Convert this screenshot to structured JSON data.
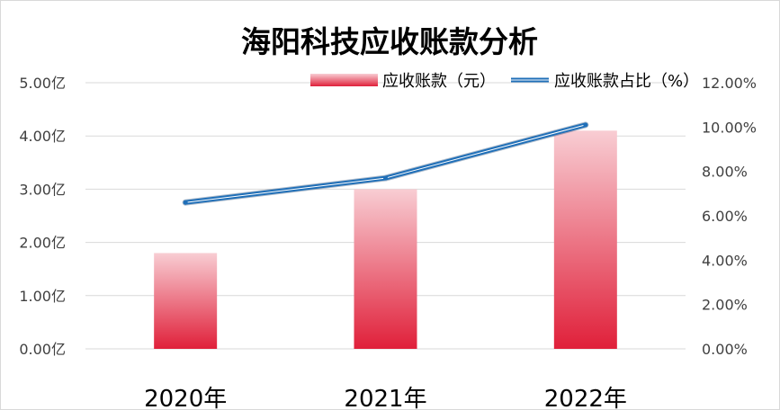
{
  "chart_data": {
    "type": "bar",
    "title": "海阳科技应收账款分析",
    "categories": [
      "2020年",
      "2021年",
      "2022年"
    ],
    "series": [
      {
        "name": "应收账款（元）",
        "kind": "bar",
        "axis": "left",
        "values": [
          1.8,
          3.0,
          4.1
        ],
        "unit": "亿",
        "color": "#e0203a",
        "gradient_top": "#f8cdd3"
      },
      {
        "name": "应收账款占比（%）",
        "kind": "line",
        "axis": "right",
        "values": [
          6.6,
          7.7,
          10.1
        ],
        "unit": "%",
        "color": "#1f6fb8"
      }
    ],
    "y_left": {
      "ylim": [
        0,
        5
      ],
      "ticks": [
        "0.00亿",
        "1.00亿",
        "2.00亿",
        "3.00亿",
        "4.00亿",
        "5.00亿"
      ]
    },
    "y_right": {
      "ylim": [
        0,
        12
      ],
      "ticks": [
        "0.00%",
        "2.00%",
        "4.00%",
        "6.00%",
        "8.00%",
        "10.00%",
        "12.00%"
      ]
    },
    "grid": true,
    "legend": "top"
  }
}
